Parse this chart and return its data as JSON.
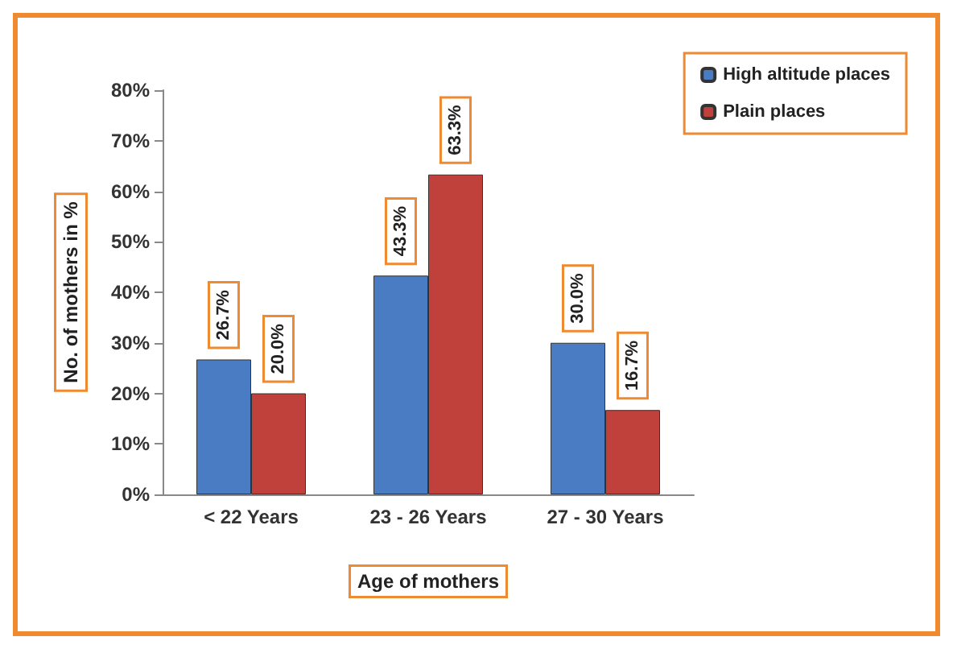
{
  "chart_data": {
    "type": "bar",
    "xlabel": "Age of mothers",
    "ylabel": "No. of mothers in %",
    "categories": [
      "< 22 Years",
      "23 - 26 Years",
      "27 - 30 Years"
    ],
    "series": [
      {
        "name": "High altitude places",
        "color": "#4a7cc4",
        "values": [
          26.7,
          43.3,
          30.0
        ],
        "value_labels": [
          "26.7%",
          "43.3%",
          "30.0%"
        ]
      },
      {
        "name": "Plain places",
        "color": "#c0403c",
        "values": [
          20.0,
          63.3,
          16.7
        ],
        "value_labels": [
          "20.0%",
          "63.3%",
          "16.7%"
        ]
      }
    ],
    "ylim": [
      0,
      80
    ],
    "yticks": [
      {
        "value": 0,
        "label": "0%"
      },
      {
        "value": 10,
        "label": "10%"
      },
      {
        "value": 20,
        "label": "20%"
      },
      {
        "value": 30,
        "label": "30%"
      },
      {
        "value": 40,
        "label": "40%"
      },
      {
        "value": 50,
        "label": "50%"
      },
      {
        "value": 60,
        "label": "60%"
      },
      {
        "value": 70,
        "label": "70%"
      },
      {
        "value": 80,
        "label": "80%"
      }
    ],
    "legend": "top right"
  }
}
